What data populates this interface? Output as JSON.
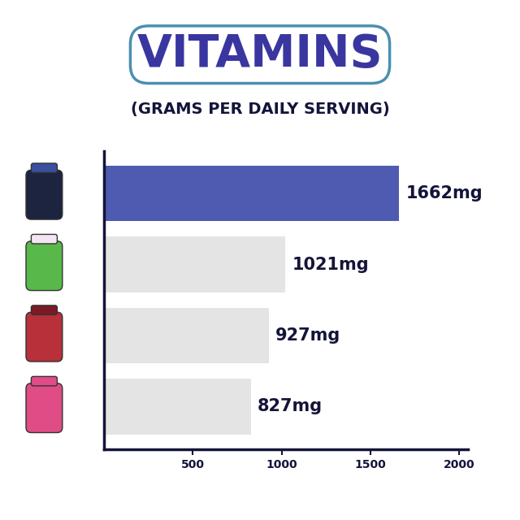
{
  "chart_data": {
    "type": "bar",
    "orientation": "horizontal",
    "title": "VITAMINS",
    "subtitle": "(GRAMS PER DAILY SERVING)",
    "categories": [
      null,
      null,
      null,
      null
    ],
    "values": [
      1662,
      1021,
      927,
      827
    ],
    "value_labels": [
      "1662mg",
      "1021mg",
      "927mg",
      "827mg"
    ],
    "colors": [
      "#4f5bb0",
      "#e4e4e4",
      "#e4e4e4",
      "#e4e4e4"
    ],
    "xlim": [
      0,
      2050
    ],
    "xticks": [
      500,
      1000,
      1500,
      2000
    ],
    "grid": false,
    "data_labels": true,
    "tick_labels": "x"
  }
}
